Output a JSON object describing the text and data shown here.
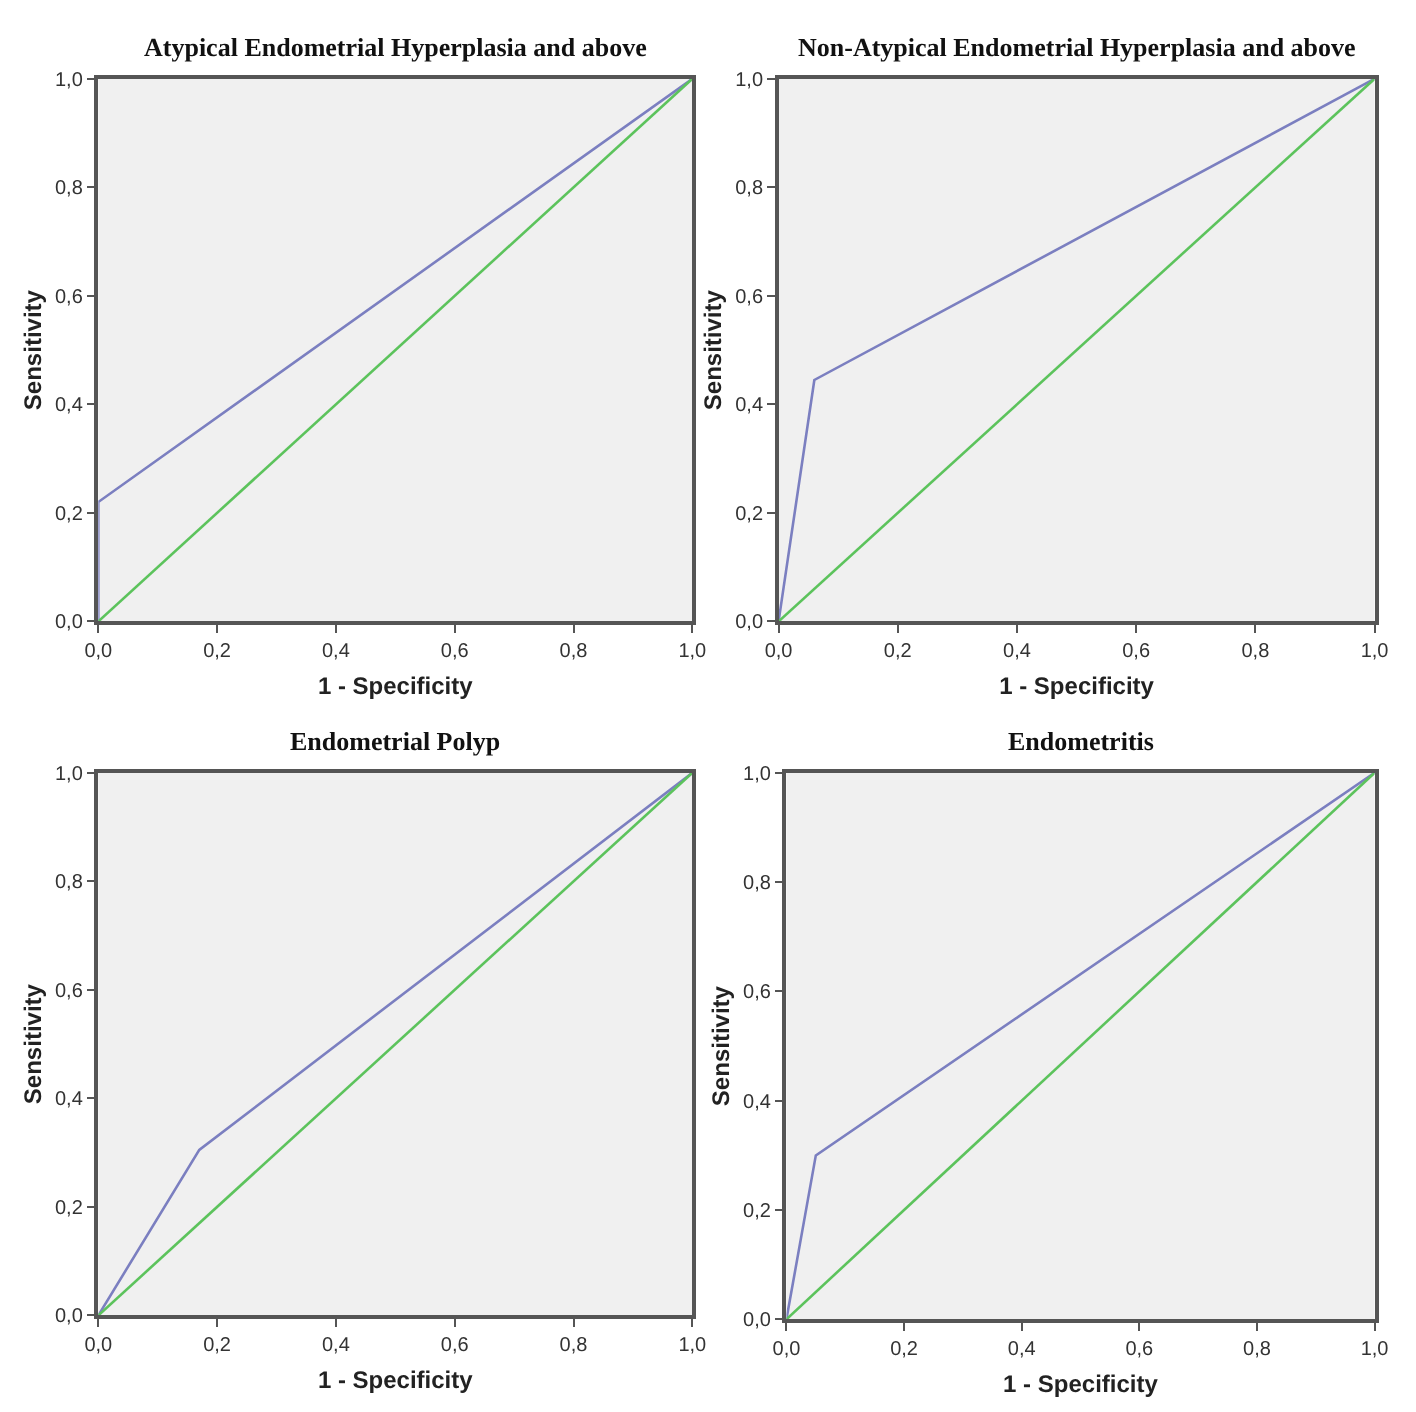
{
  "chart_data": [
    {
      "type": "line",
      "title": "Atypical Endometrial Hyperplasia and above",
      "xlabel": "1 - Specificity",
      "ylabel": "Sensitivity",
      "xlim": [
        0,
        1
      ],
      "ylim": [
        0,
        1
      ],
      "xticks": [
        {
          "value": 0,
          "label": "0,0"
        },
        {
          "value": 0.2,
          "label": "0,2"
        },
        {
          "value": 0.4,
          "label": "0,4"
        },
        {
          "value": 0.6,
          "label": "0,6"
        },
        {
          "value": 0.8,
          "label": "0,8"
        },
        {
          "value": 1,
          "label": "1,0"
        }
      ],
      "yticks": [
        {
          "value": 0,
          "label": "0,0"
        },
        {
          "value": 0.2,
          "label": "0,2"
        },
        {
          "value": 0.4,
          "label": "0,4"
        },
        {
          "value": 0.6,
          "label": "0,6"
        },
        {
          "value": 0.8,
          "label": "0,8"
        },
        {
          "value": 1,
          "label": "1,0"
        }
      ],
      "grid": false,
      "series": [
        {
          "color": "#7b7fc0",
          "x": [
            0,
            0,
            1
          ],
          "values": [
            0,
            0.22,
            1
          ]
        },
        {
          "color": "#5cc35c",
          "x": [
            0,
            1
          ],
          "values": [
            0,
            1
          ]
        }
      ]
    },
    {
      "type": "line",
      "title": "Non-Atypical Endometrial Hyperplasia and above",
      "xlabel": "1 - Specificity",
      "ylabel": "Sensitivity",
      "xlim": [
        0,
        1
      ],
      "ylim": [
        0,
        1
      ],
      "xticks": [
        {
          "value": 0,
          "label": "0,0"
        },
        {
          "value": 0.2,
          "label": "0,2"
        },
        {
          "value": 0.4,
          "label": "0,4"
        },
        {
          "value": 0.6,
          "label": "0,6"
        },
        {
          "value": 0.8,
          "label": "0,8"
        },
        {
          "value": 1,
          "label": "1,0"
        }
      ],
      "yticks": [
        {
          "value": 0,
          "label": "0,0"
        },
        {
          "value": 0.2,
          "label": "0,2"
        },
        {
          "value": 0.4,
          "label": "0,4"
        },
        {
          "value": 0.6,
          "label": "0,6"
        },
        {
          "value": 0.8,
          "label": "0,8"
        },
        {
          "value": 1,
          "label": "1,0"
        }
      ],
      "grid": false,
      "series": [
        {
          "color": "#7b7fc0",
          "x": [
            0,
            0.06,
            1
          ],
          "values": [
            0,
            0.445,
            1
          ]
        },
        {
          "color": "#5cc35c",
          "x": [
            0,
            1
          ],
          "values": [
            0,
            1
          ]
        }
      ]
    },
    {
      "type": "line",
      "title": "Endometrial Polyp",
      "xlabel": "1 - Specificity",
      "ylabel": "Sensitivity",
      "xlim": [
        0,
        1
      ],
      "ylim": [
        0,
        1
      ],
      "xticks": [
        {
          "value": 0,
          "label": "0,0"
        },
        {
          "value": 0.2,
          "label": "0,2"
        },
        {
          "value": 0.4,
          "label": "0,4"
        },
        {
          "value": 0.6,
          "label": "0,6"
        },
        {
          "value": 0.8,
          "label": "0,8"
        },
        {
          "value": 1,
          "label": "1,0"
        }
      ],
      "yticks": [
        {
          "value": 0,
          "label": "0,0"
        },
        {
          "value": 0.2,
          "label": "0,2"
        },
        {
          "value": 0.4,
          "label": "0,4"
        },
        {
          "value": 0.6,
          "label": "0,6"
        },
        {
          "value": 0.8,
          "label": "0,8"
        },
        {
          "value": 1,
          "label": "1,0"
        }
      ],
      "grid": false,
      "series": [
        {
          "color": "#7b7fc0",
          "x": [
            0,
            0.17,
            1
          ],
          "values": [
            0,
            0.305,
            1
          ]
        },
        {
          "color": "#5cc35c",
          "x": [
            0,
            1
          ],
          "values": [
            0,
            1
          ]
        }
      ]
    },
    {
      "type": "line",
      "title": "Endometritis",
      "xlabel": "1 - Specificity",
      "ylabel": "Sensitivity",
      "xlim": [
        0,
        1
      ],
      "ylim": [
        0,
        1
      ],
      "xticks": [
        {
          "value": 0,
          "label": "0,0"
        },
        {
          "value": 0.2,
          "label": "0,2"
        },
        {
          "value": 0.4,
          "label": "0,4"
        },
        {
          "value": 0.6,
          "label": "0,6"
        },
        {
          "value": 0.8,
          "label": "0,8"
        },
        {
          "value": 1,
          "label": "1,0"
        }
      ],
      "yticks": [
        {
          "value": 0,
          "label": "0,0"
        },
        {
          "value": 0.2,
          "label": "0,2"
        },
        {
          "value": 0.4,
          "label": "0,4"
        },
        {
          "value": 0.6,
          "label": "0,6"
        },
        {
          "value": 0.8,
          "label": "0,8"
        },
        {
          "value": 1,
          "label": "1,0"
        }
      ],
      "grid": false,
      "series": [
        {
          "color": "#7b7fc0",
          "x": [
            0,
            0.05,
            1
          ],
          "values": [
            0,
            0.3,
            1
          ]
        },
        {
          "color": "#5cc35c",
          "x": [
            0,
            1
          ],
          "values": [
            0,
            1
          ]
        }
      ]
    }
  ]
}
